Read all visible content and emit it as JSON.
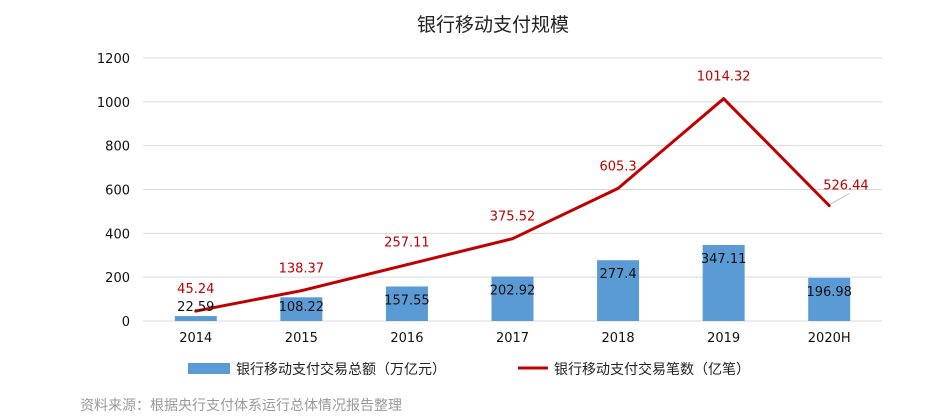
{
  "chart_data": {
    "type": "bar",
    "title": "银行移动支付规模",
    "categories": [
      "2014",
      "2015",
      "2016",
      "2017",
      "2018",
      "2019",
      "2020H"
    ],
    "series": [
      {
        "name": "银行移动支付交易总额（万亿元）",
        "type": "bar",
        "values": [
          22.59,
          108.22,
          157.55,
          202.92,
          277.4,
          347.11,
          196.98
        ],
        "labels": [
          "22.59",
          "108.22",
          "157.55",
          "202.92",
          "277.4",
          "347.11",
          "196.98"
        ],
        "color": "#5b9bd5"
      },
      {
        "name": "银行移动支付交易笔数（亿笔）",
        "type": "line",
        "values": [
          45.24,
          138.37,
          257.11,
          375.52,
          605.3,
          1014.32,
          526.44
        ],
        "labels": [
          "45.24",
          "138.37",
          "257.11",
          "375.52",
          "605.3",
          "1014.32",
          "526.44"
        ],
        "color": "#c00000"
      }
    ],
    "yticks": [
      "0",
      "200",
      "400",
      "600",
      "800",
      "1000",
      "1200"
    ],
    "ylim": [
      0,
      1200
    ],
    "grid": true,
    "legend_position": "bottom",
    "xlabel": "",
    "ylabel": ""
  },
  "source": "资料来源：根据央行支付体系运行总体情况报告整理"
}
